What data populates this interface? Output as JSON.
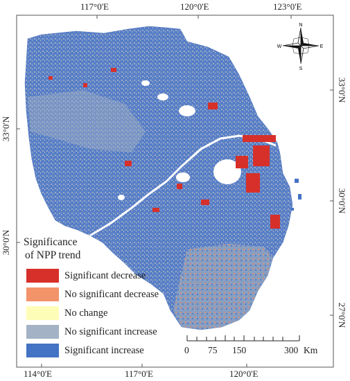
{
  "map": {
    "axis": {
      "top": [
        "117°0'E",
        "120°0'E",
        "123°0'E"
      ],
      "bottom": [
        "114°0'E",
        "117°0'E",
        "120°0'E"
      ],
      "left": [
        "33°0'N",
        "30°0'N"
      ],
      "right": [
        "33°0'N",
        "30°0'N",
        "27°0'N"
      ]
    },
    "north_arrow": {
      "n": "N",
      "s": "S",
      "e": "E",
      "w": "W"
    },
    "legend": {
      "title_line1": "Significance",
      "title_line2": "of NPP trend",
      "items": [
        {
          "label": "Significant decrease",
          "color": "#d7302a"
        },
        {
          "label": "No significant decrease",
          "color": "#f3936a"
        },
        {
          "label": "No change",
          "color": "#fefdb8"
        },
        {
          "label": "No significant increase",
          "color": "#a3b2c4"
        },
        {
          "label": "Significant increase",
          "color": "#4472c4"
        }
      ]
    },
    "scale_bar": {
      "labels": [
        "0",
        "75",
        "150",
        "300"
      ],
      "unit": "Km"
    }
  }
}
